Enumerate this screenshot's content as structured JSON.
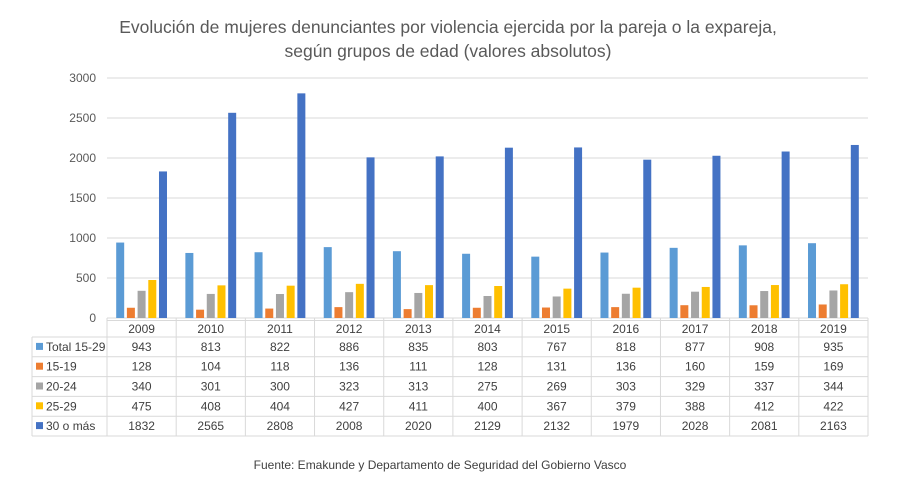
{
  "chart_data": {
    "type": "bar",
    "title": [
      "Evolución de mujeres denunciantes por violencia ejercida por la pareja o la expareja,",
      "según grupos de edad (valores absolutos)"
    ],
    "xlabel": "",
    "ylabel": "",
    "ylim": [
      0,
      3000
    ],
    "yticks": [
      "0",
      "500",
      "1000",
      "1500",
      "2000",
      "2500",
      "3000"
    ],
    "grid": true,
    "legend": "data-table",
    "categories": [
      "2009",
      "2010",
      "2011",
      "2012",
      "2013",
      "2014",
      "2015",
      "2016",
      "2017",
      "2018",
      "2019"
    ],
    "series": [
      {
        "name": "Total 15-29",
        "color": "#5B9BD5",
        "values": [
          943,
          813,
          822,
          886,
          835,
          803,
          767,
          818,
          877,
          908,
          935
        ]
      },
      {
        "name": "15-19",
        "color": "#ED7D31",
        "values": [
          128,
          104,
          118,
          136,
          111,
          128,
          131,
          136,
          160,
          159,
          169
        ]
      },
      {
        "name": "20-24",
        "color": "#A5A5A5",
        "values": [
          340,
          301,
          300,
          323,
          313,
          275,
          269,
          303,
          329,
          337,
          344
        ]
      },
      {
        "name": "25-29",
        "color": "#FFC000",
        "values": [
          475,
          408,
          404,
          427,
          411,
          400,
          367,
          379,
          388,
          412,
          422
        ]
      },
      {
        "name": "30 o más",
        "color": "#4472C4",
        "values": [
          1832,
          2565,
          2808,
          2008,
          2020,
          2129,
          2132,
          1979,
          2028,
          2081,
          2163
        ]
      }
    ],
    "source": "Fuente: Emakunde y Departamento de Seguridad del Gobierno Vasco"
  }
}
